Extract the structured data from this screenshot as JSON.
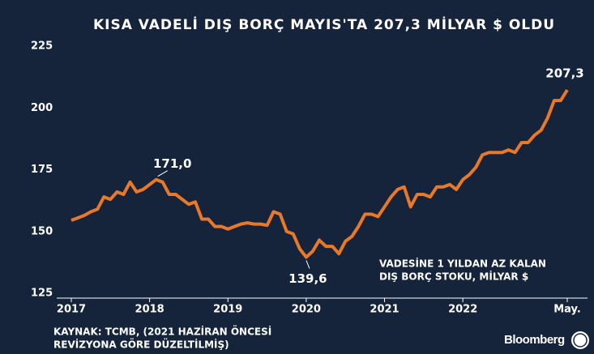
{
  "chart_data": {
    "type": "line",
    "title": "KISA VADELİ DIŞ BORÇ MAYIS'TA 207,3 MİLYAR $ OLDU",
    "note": [
      "VADESİNE 1 YILDAN AZ KALAN",
      "DIŞ BORÇ STOKU, MİLYAR $"
    ],
    "source": [
      "KAYNAK: TCMB, (2021 HAZİRAN ÖNCESİ",
      "REVİZYONA GÖRE DÜZELTİLMİŞ)"
    ],
    "brand": "Bloomberg",
    "categories": [
      "2017",
      null,
      null,
      null,
      null,
      null,
      null,
      null,
      null,
      null,
      null,
      null,
      "2018",
      null,
      null,
      null,
      null,
      null,
      null,
      null,
      null,
      null,
      null,
      null,
      "2019",
      null,
      null,
      null,
      null,
      null,
      null,
      null,
      null,
      null,
      null,
      null,
      "2020",
      null,
      null,
      null,
      null,
      null,
      null,
      null,
      null,
      null,
      null,
      null,
      "2021",
      null,
      null,
      null,
      null,
      null,
      null,
      null,
      null,
      null,
      null,
      null,
      "2022",
      null,
      null,
      null,
      null,
      null,
      null,
      null,
      null,
      null,
      null,
      null,
      null,
      null,
      null,
      null,
      "May."
    ],
    "series": [
      {
        "name": "VADESİNE 1 YILDAN AZ KALAN DIŞ BORÇ STOKU",
        "color": "#e8782a",
        "values": [
          154.5,
          155.5,
          156.5,
          158,
          159,
          164,
          163,
          166,
          165,
          170,
          166,
          167,
          169,
          171.0,
          170,
          165,
          165,
          163,
          161,
          162,
          155,
          155,
          152,
          152,
          151,
          152,
          153,
          153.5,
          153,
          153,
          152.5,
          158,
          157,
          150,
          149,
          143,
          139.6,
          142,
          146.5,
          144,
          144,
          141,
          146,
          148,
          152,
          157,
          157,
          156,
          160,
          164,
          167,
          168,
          160,
          165,
          165,
          164,
          168,
          168,
          169,
          167,
          171,
          173,
          176,
          181,
          182,
          182,
          182,
          183,
          182,
          186,
          186,
          189,
          191,
          196,
          203,
          203,
          207.3
        ],
        "value_labels": [
          null,
          null,
          null,
          null,
          null,
          null,
          null,
          null,
          null,
          null,
          null,
          null,
          null,
          "171,0",
          null,
          null,
          null,
          null,
          null,
          null,
          null,
          null,
          null,
          null,
          null,
          null,
          null,
          null,
          null,
          null,
          null,
          null,
          null,
          null,
          null,
          null,
          "139,6",
          null,
          null,
          null,
          null,
          null,
          null,
          null,
          null,
          null,
          null,
          null,
          null,
          null,
          null,
          null,
          null,
          null,
          null,
          null,
          null,
          null,
          null,
          null,
          null,
          null,
          null,
          null,
          null,
          null,
          null,
          null,
          null,
          null,
          null,
          null,
          null,
          null,
          null,
          null,
          "207,3"
        ]
      }
    ],
    "ylim": [
      125,
      225
    ],
    "yticks": [
      125,
      150,
      175,
      200,
      225
    ],
    "grid": false
  }
}
